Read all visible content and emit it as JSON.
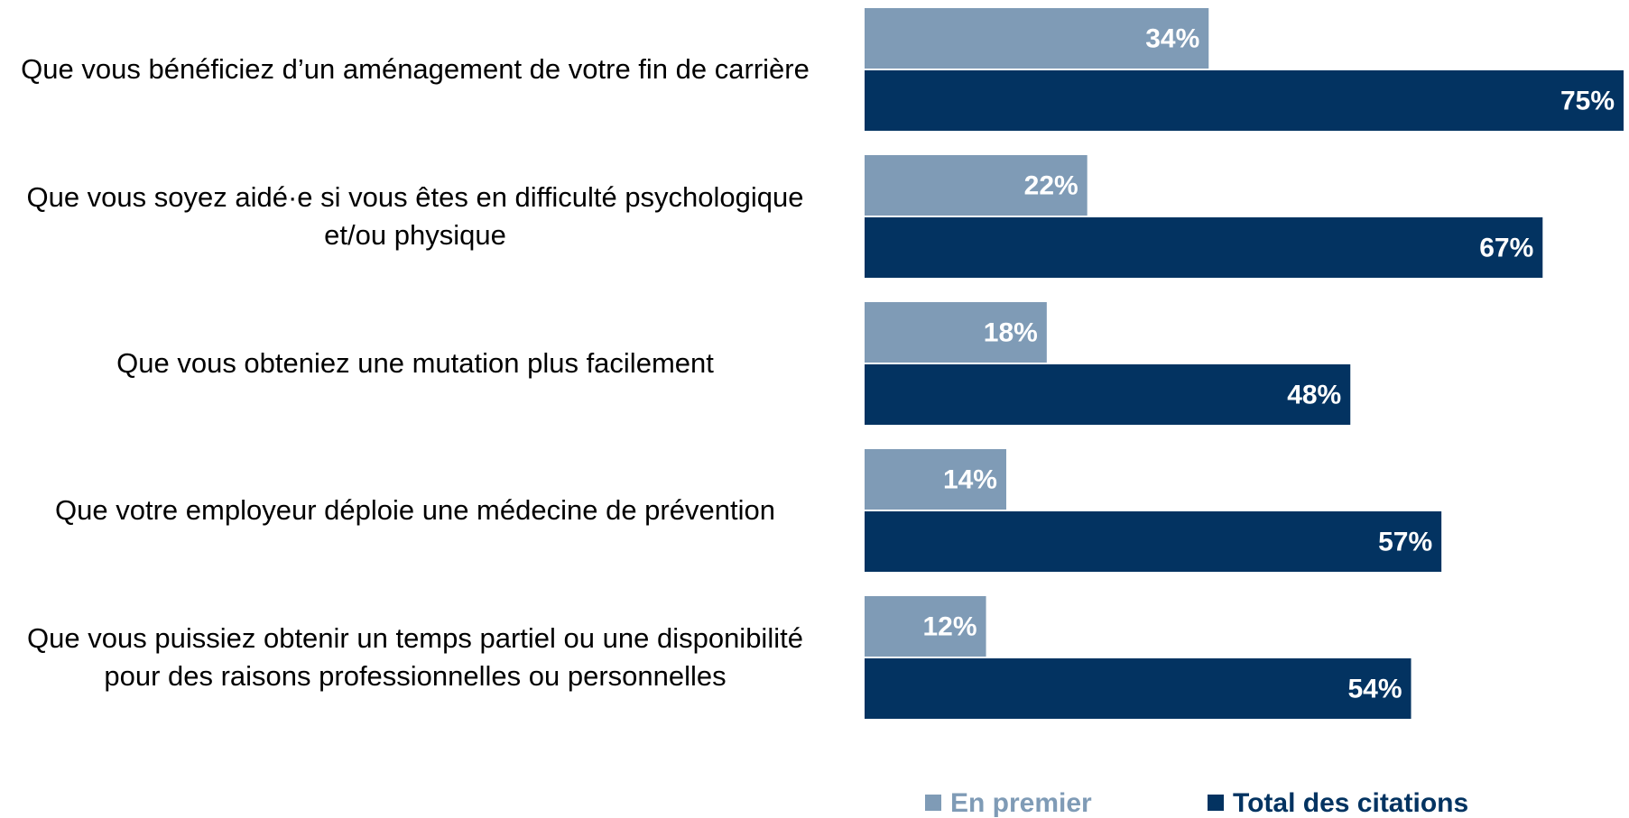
{
  "chart_data": {
    "type": "bar",
    "orientation": "horizontal",
    "categories": [
      "Que vous bénéficiez d’un aménagement de votre fin de carrière",
      "Que vous soyez aidé·e si vous êtes en difficulté psychologique et/ou physique",
      "Que vous obteniez une mutation plus facilement",
      "Que votre employeur déploie une médecine de prévention",
      "Que vous puissiez obtenir un temps partiel ou une disponibilité pour des raisons professionnelles ou personnelles"
    ],
    "series": [
      {
        "name": "En premier",
        "color": "#7f9bb6",
        "values": [
          34,
          22,
          18,
          14,
          12
        ],
        "value_labels": [
          "34%",
          "22%",
          "18%",
          "14%",
          "12%"
        ]
      },
      {
        "name": "Total des citations",
        "color": "#033361",
        "values": [
          75,
          67,
          48,
          57,
          54
        ],
        "value_labels": [
          "75%",
          "67%",
          "48%",
          "57%",
          "54%"
        ]
      }
    ],
    "xlim": [
      0,
      75
    ],
    "legend": "bottom"
  }
}
